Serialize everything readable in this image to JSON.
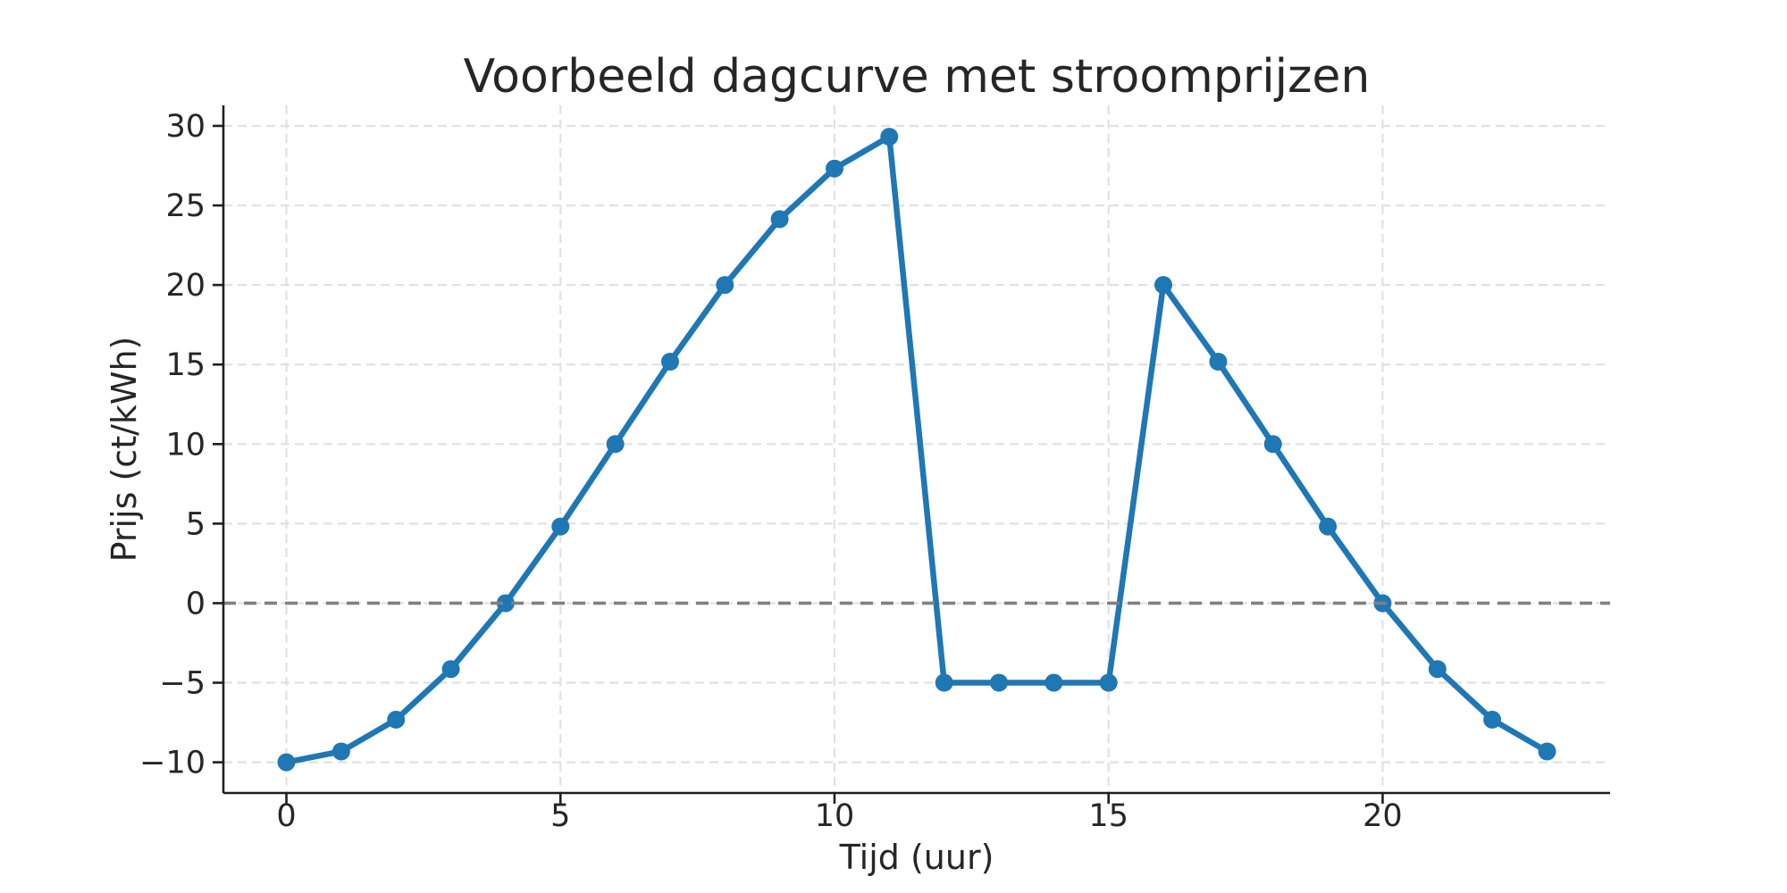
{
  "figure": {
    "background": "#ffffff"
  },
  "chart_data": {
    "type": "line",
    "title": "Voorbeeld dagcurve met stroomprijzen",
    "xlabel": "Tijd (uur)",
    "ylabel": "Prijs (ct/kWh)",
    "x": [
      0,
      1,
      2,
      3,
      4,
      5,
      6,
      7,
      8,
      9,
      10,
      11,
      12,
      13,
      14,
      15,
      16,
      17,
      18,
      19,
      20,
      21,
      22,
      23
    ],
    "y": [
      -10.0,
      -9.32,
      -7.32,
      -4.14,
      0.0,
      4.82,
      10.0,
      15.18,
      20.0,
      24.14,
      27.32,
      29.32,
      -5.0,
      -5.0,
      -5.0,
      -5.0,
      20.0,
      15.18,
      10.0,
      4.82,
      0.0,
      -4.14,
      -7.32,
      -9.32
    ],
    "xticks": [
      0,
      5,
      10,
      15,
      20
    ],
    "yticks": [
      -10,
      -5,
      0,
      5,
      10,
      15,
      20,
      25,
      30
    ],
    "xlim": [
      -1.15,
      24.15
    ],
    "ylim": [
      -11.93,
      31.29
    ],
    "grid": true,
    "legend": false,
    "line_color": "#1f77b4",
    "marker": "circle",
    "marker_color": "#1f77b4",
    "zero_line": {
      "y": 0,
      "color": "#808080",
      "style": "dashed"
    },
    "grid_color": "#e1e1e1",
    "axis_color": "#1f1f1f",
    "text_color": "#262626"
  }
}
